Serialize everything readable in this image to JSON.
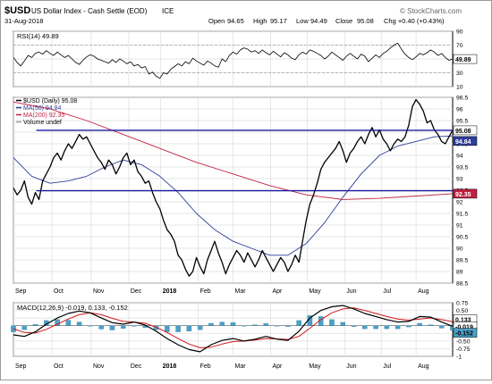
{
  "header": {
    "symbol": "$USD",
    "name": "US Dollar Index - Cash Settle (EOD)",
    "exchange": "ICE",
    "date": "31-Aug-2018",
    "open_label": "Open",
    "open": "94.65",
    "high_label": "High",
    "high": "95.17",
    "low_label": "Low",
    "low": "94.49",
    "close_label": "Close",
    "close": "95.08",
    "volume_label": "Volume",
    "change": "Chg +0.40 (+0.43%)",
    "brand": "© StockCharts.com"
  },
  "colors": {
    "price": "#000000",
    "ma50": "#2e3d9a",
    "ma200": "#c0213f",
    "trendline": "#1a1aa0",
    "macd": "#000000",
    "signal": "#d01818",
    "histogram": "#4aa0c8"
  },
  "chart_data": [
    {
      "type": "line",
      "panel": "rsi",
      "legend": "RSI(14) 49.89",
      "ylim": [
        10,
        90
      ],
      "yticks": [
        90,
        70,
        50,
        30,
        10
      ],
      "reference_lines": [
        70,
        30
      ],
      "current_label": "49.89",
      "current_value": 49.89,
      "series": [
        {
          "name": "RSI(14)",
          "x": [
            0,
            4,
            8,
            12,
            16,
            20,
            24,
            28,
            32,
            36,
            40,
            44,
            48,
            52,
            56,
            60,
            64,
            68,
            72,
            76,
            80,
            84,
            88,
            92,
            96,
            100,
            104,
            108,
            112,
            116,
            120,
            124,
            128,
            132,
            136,
            140,
            144,
            148,
            152,
            156,
            160,
            164,
            168,
            172,
            176,
            180,
            184,
            188,
            192,
            196,
            200,
            204,
            208,
            212,
            216,
            220,
            224,
            228,
            232,
            236,
            240,
            244,
            248,
            252,
            256,
            260,
            264,
            268,
            272,
            276,
            280,
            284,
            288,
            292,
            296,
            300,
            304,
            308,
            312,
            316,
            320,
            324,
            328,
            332,
            336,
            340,
            344,
            348,
            352,
            356,
            360,
            364,
            368,
            372,
            376,
            380,
            384,
            388,
            392,
            396,
            400,
            404,
            408,
            412,
            416,
            420,
            424,
            428,
            432,
            436,
            440,
            444,
            448,
            452,
            456,
            460,
            464,
            468,
            472,
            476,
            480
          ],
          "values": [
            52,
            45,
            40,
            47,
            55,
            52,
            58,
            60,
            57,
            62,
            58,
            55,
            60,
            56,
            52,
            55,
            50,
            45,
            42,
            48,
            53,
            56,
            54,
            50,
            48,
            46,
            44,
            49,
            45,
            50,
            47,
            43,
            46,
            40,
            42,
            37,
            39,
            28,
            31,
            25,
            22,
            30,
            28,
            35,
            39,
            43,
            40,
            46,
            43,
            51,
            47,
            44,
            41,
            47,
            44,
            40,
            38,
            50,
            46,
            55,
            60,
            57,
            63,
            66,
            64,
            60,
            62,
            58,
            63,
            59,
            56,
            61,
            57,
            53,
            59,
            56,
            51,
            49,
            56,
            60,
            57,
            63,
            61,
            58,
            55,
            50,
            54,
            60,
            56,
            52,
            48,
            54,
            58,
            54,
            50,
            57,
            54,
            46,
            51,
            56,
            52,
            58,
            61,
            66,
            70,
            73,
            64,
            57,
            52,
            49,
            53,
            58,
            56,
            59,
            63,
            60,
            55,
            58,
            52,
            48,
            50
          ]
        }
      ]
    },
    {
      "type": "line",
      "panel": "price",
      "ylim": [
        88.5,
        96.5
      ],
      "yticks": [
        96.5,
        96.0,
        95.5,
        95.0,
        94.5,
        94.0,
        93.5,
        93.0,
        92.5,
        92.0,
        91.5,
        91.0,
        90.5,
        90.0,
        89.5,
        89.0,
        88.5
      ],
      "xticks": [
        "Sep",
        "Oct",
        "Nov",
        "Dec",
        "2018",
        "Feb",
        "Mar",
        "Apr",
        "May",
        "Jun",
        "Jul",
        "Aug"
      ],
      "xtick_positions": [
        0,
        42,
        85,
        126,
        161,
        202,
        240,
        281,
        321,
        362,
        402,
        440
      ],
      "legend": [
        {
          "key": "price",
          "label": "$USD (Daily) 95.08"
        },
        {
          "key": "ma50",
          "label": "MA(50) 94.84"
        },
        {
          "key": "ma200",
          "label": "MA(200) 92.35"
        },
        {
          "key": "volume",
          "label": "Volume undef"
        }
      ],
      "price_labels": [
        {
          "text": "95.08",
          "value": 95.08,
          "color": "#000000"
        },
        {
          "text": "94.84",
          "value": 94.84,
          "color": "#2e3d9a"
        },
        {
          "text": "92.35",
          "value": 92.35,
          "color": "#c0213f"
        }
      ],
      "trendlines": [
        {
          "y": [
            95.08,
            95.08
          ]
        },
        {
          "y": [
            92.48,
            92.48
          ]
        }
      ],
      "series": [
        {
          "name": "$USD (Daily)",
          "x": [
            0,
            4,
            8,
            12,
            16,
            20,
            24,
            28,
            32,
            36,
            40,
            44,
            48,
            52,
            56,
            60,
            64,
            68,
            72,
            76,
            80,
            84,
            88,
            92,
            96,
            100,
            104,
            108,
            112,
            116,
            120,
            124,
            128,
            132,
            136,
            140,
            144,
            148,
            152,
            156,
            160,
            164,
            168,
            172,
            176,
            180,
            184,
            188,
            192,
            196,
            200,
            204,
            208,
            212,
            216,
            220,
            224,
            228,
            232,
            236,
            240,
            244,
            248,
            252,
            256,
            260,
            264,
            268,
            272,
            276,
            280,
            284,
            288,
            292,
            296,
            300,
            304,
            308,
            312,
            316,
            320,
            324,
            328,
            332,
            336,
            340,
            344,
            348,
            352,
            356,
            360,
            364,
            368,
            372,
            376,
            380,
            384,
            388,
            392,
            396,
            400,
            404,
            408,
            412,
            416,
            420,
            424,
            428,
            432,
            436,
            440,
            444,
            448,
            452,
            456,
            460,
            464,
            468,
            472,
            476,
            480
          ],
          "values": [
            92.6,
            92.3,
            92.5,
            92.9,
            92.2,
            91.9,
            92.4,
            92.1,
            92.9,
            93.2,
            93.5,
            93.9,
            94.1,
            93.8,
            94.2,
            94.5,
            94.3,
            94.6,
            94.9,
            94.7,
            94.8,
            94.5,
            94.2,
            93.9,
            93.7,
            93.4,
            93.8,
            93.6,
            93.2,
            93.5,
            93.9,
            94.1,
            93.6,
            93.8,
            93.3,
            93.1,
            92.8,
            92.9,
            92.4,
            92.0,
            91.7,
            91.2,
            90.8,
            90.6,
            90.3,
            89.7,
            89.5,
            89.1,
            88.8,
            89.0,
            89.6,
            89.2,
            88.9,
            89.5,
            89.9,
            90.3,
            89.8,
            89.4,
            88.9,
            89.3,
            89.6,
            89.9,
            89.7,
            89.4,
            89.8,
            89.5,
            89.2,
            89.5,
            89.9,
            89.6,
            89.3,
            89.0,
            89.3,
            89.6,
            89.4,
            89.0,
            89.3,
            89.7,
            89.4,
            90.3,
            91.2,
            91.9,
            92.3,
            92.8,
            93.4,
            93.7,
            93.9,
            94.1,
            94.3,
            94.6,
            94.2,
            93.7,
            94.1,
            94.3,
            94.6,
            94.8,
            94.5,
            94.9,
            95.2,
            94.8,
            95.1,
            94.7,
            94.5,
            94.2,
            94.5,
            94.7,
            94.6,
            94.8,
            95.3,
            96.1,
            96.4,
            96.2,
            95.9,
            95.4,
            95.5,
            95.1,
            94.9,
            94.6,
            94.5,
            94.8,
            95.08
          ]
        },
        {
          "name": "MA(50)",
          "x": [
            0,
            20,
            40,
            60,
            80,
            100,
            120,
            140,
            160,
            180,
            200,
            220,
            240,
            260,
            280,
            300,
            320,
            340,
            360,
            380,
            400,
            420,
            440,
            460,
            480
          ],
          "values": [
            93.9,
            93.1,
            92.8,
            92.9,
            93.1,
            93.5,
            93.8,
            93.6,
            93.1,
            92.4,
            91.5,
            90.8,
            90.3,
            90.0,
            89.7,
            89.7,
            90.2,
            91.1,
            92.2,
            93.2,
            94.0,
            94.4,
            94.6,
            94.8,
            94.84
          ]
        },
        {
          "name": "MA(200)",
          "x": [
            0,
            40,
            80,
            120,
            160,
            200,
            240,
            280,
            320,
            360,
            400,
            440,
            480
          ],
          "values": [
            96.3,
            96.0,
            95.5,
            94.9,
            94.3,
            93.7,
            93.2,
            92.7,
            92.3,
            92.1,
            92.15,
            92.25,
            92.35
          ]
        }
      ]
    },
    {
      "type": "line",
      "panel": "macd",
      "legend": "MACD(12,26,9) -0.019, 0.133, -0.152",
      "ylim": [
        -1.0,
        0.75
      ],
      "yticks": [
        0.75,
        0.5,
        0.25,
        -0.25,
        -0.5,
        -0.75,
        -1.0
      ],
      "current_labels": [
        {
          "text": "0.133",
          "value": 0.133
        },
        {
          "text": "-0.019",
          "value": -0.019
        },
        {
          "text": "-0.152",
          "value": -0.152
        }
      ],
      "xticks": [
        "Sep",
        "Oct",
        "Nov",
        "Dec",
        "2018",
        "Feb",
        "Mar",
        "Apr",
        "May",
        "Jun",
        "Jul",
        "Aug"
      ],
      "xtick_positions": [
        0,
        42,
        85,
        126,
        161,
        202,
        240,
        281,
        321,
        362,
        402,
        440
      ],
      "series": [
        {
          "name": "MACD",
          "x": [
            0,
            12,
            24,
            36,
            48,
            60,
            72,
            84,
            96,
            108,
            120,
            132,
            144,
            156,
            168,
            180,
            192,
            204,
            216,
            228,
            240,
            252,
            264,
            276,
            288,
            300,
            312,
            324,
            336,
            348,
            360,
            372,
            384,
            396,
            408,
            420,
            432,
            444,
            456,
            468,
            480
          ],
          "values": [
            -0.3,
            -0.35,
            -0.2,
            0.05,
            0.25,
            0.4,
            0.48,
            0.42,
            0.25,
            0.1,
            0.05,
            0.12,
            0.02,
            -0.18,
            -0.42,
            -0.62,
            -0.78,
            -0.85,
            -0.62,
            -0.48,
            -0.42,
            -0.5,
            -0.44,
            -0.35,
            -0.44,
            -0.48,
            -0.18,
            0.25,
            0.5,
            0.62,
            0.66,
            0.55,
            0.4,
            0.3,
            0.2,
            0.12,
            0.14,
            0.3,
            0.28,
            0.12,
            -0.019
          ]
        },
        {
          "name": "Signal",
          "x": [
            0,
            12,
            24,
            36,
            48,
            60,
            72,
            84,
            96,
            108,
            120,
            132,
            144,
            156,
            168,
            180,
            192,
            204,
            216,
            228,
            240,
            252,
            264,
            276,
            288,
            300,
            312,
            324,
            336,
            348,
            360,
            372,
            384,
            396,
            408,
            420,
            432,
            444,
            456,
            468,
            480
          ],
          "values": [
            -0.1,
            -0.22,
            -0.24,
            -0.12,
            0.05,
            0.22,
            0.36,
            0.42,
            0.36,
            0.24,
            0.14,
            0.12,
            0.08,
            -0.05,
            -0.22,
            -0.42,
            -0.6,
            -0.72,
            -0.7,
            -0.6,
            -0.52,
            -0.5,
            -0.47,
            -0.42,
            -0.43,
            -0.45,
            -0.35,
            -0.08,
            0.2,
            0.42,
            0.55,
            0.58,
            0.5,
            0.4,
            0.3,
            0.22,
            0.18,
            0.22,
            0.25,
            0.2,
            0.133
          ]
        }
      ]
    }
  ]
}
